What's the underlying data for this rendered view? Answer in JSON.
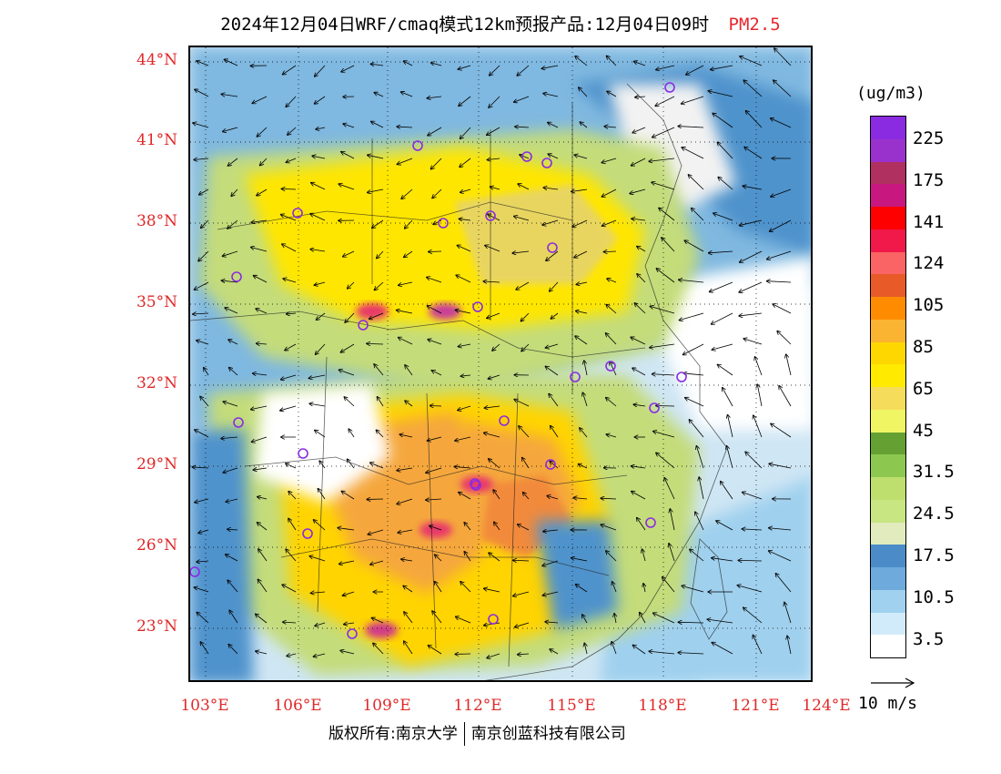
{
  "title": {
    "main": "2024年12月04日WRF/cmaq模式12km预报产品:12月04日09时",
    "pollutant": "PM2.5",
    "pollutant_color": "#e8262c"
  },
  "map": {
    "lat_labels": [
      "44°N",
      "41°N",
      "38°N",
      "35°N",
      "32°N",
      "29°N",
      "26°N",
      "23°N"
    ],
    "lon_labels": [
      "103°E",
      "106°E",
      "109°E",
      "112°E",
      "115°E",
      "118°E",
      "121°E",
      "124°E"
    ],
    "label_color": "#e02828",
    "extent": {
      "lon_min": 102.7,
      "lon_max": 124.0,
      "lat_min": 21.0,
      "lat_max": 44.5
    }
  },
  "colorbar": {
    "unit": "(ug/m3)",
    "labels": [
      "225",
      "175",
      "141",
      "124",
      "105",
      "85",
      "65",
      "45",
      "31.5",
      "24.5",
      "17.5",
      "10.5",
      "3.5"
    ],
    "colors": [
      "#8a2be2",
      "#9932cc",
      "#b03060",
      "#c8187f",
      "#ff0000",
      "#f0194a",
      "#fa6464",
      "#e85a28",
      "#ff8c00",
      "#fab432",
      "#ffd700",
      "#ffea00",
      "#f5dc5a",
      "#f0f564",
      "#64a032",
      "#8cc850",
      "#bede6e",
      "#c8e682",
      "#e1ebbe",
      "#4b8cc8",
      "#6eaadc",
      "#a0d2f0",
      "#d2ebfa",
      "#ffffff"
    ]
  },
  "wind": {
    "reference_label": "10 m/s"
  },
  "footer": {
    "left": "版权所有:南京大学",
    "right": "南京创蓝科技有限公司"
  }
}
